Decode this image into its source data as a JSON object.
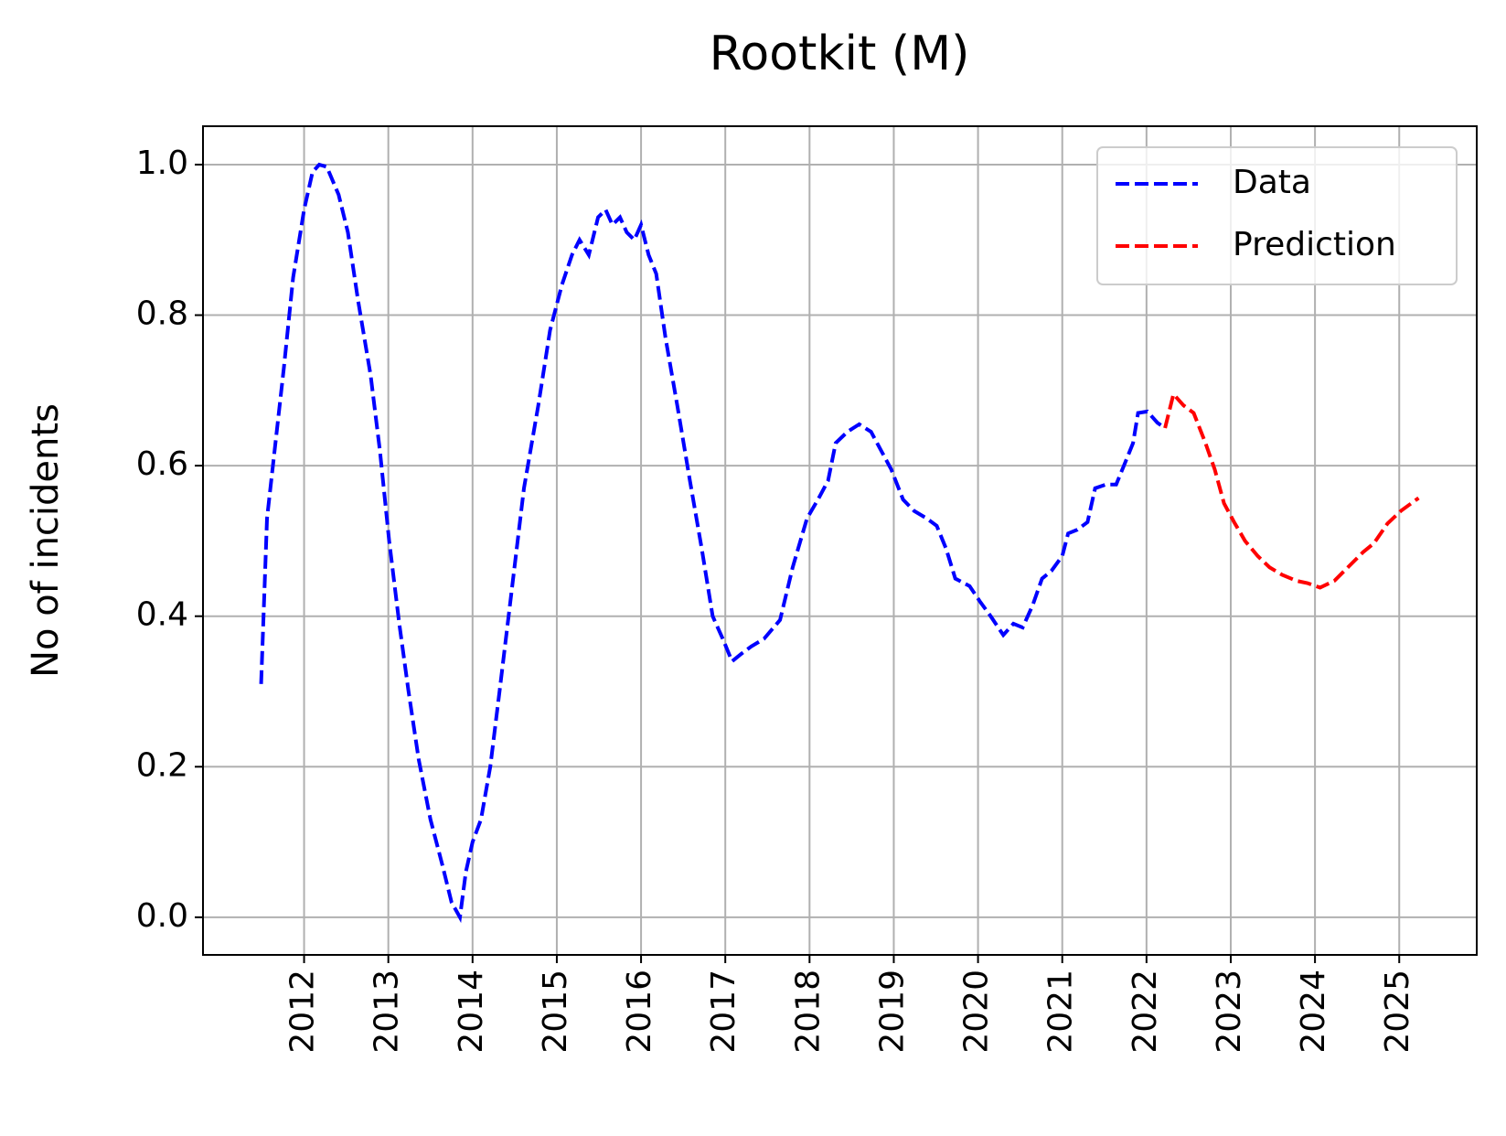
{
  "chart_data": {
    "type": "line",
    "title": "Rootkit (M)",
    "y_label": "No of incidents",
    "xlim": [
      2010.8,
      2025.92
    ],
    "xticks": [
      2012,
      2013,
      2014,
      2015,
      2016,
      2017,
      2018,
      2019,
      2020,
      2021,
      2022,
      2023,
      2024,
      2025
    ],
    "ylim": [
      -0.05,
      1.051
    ],
    "yticks": [
      {
        "value": 0,
        "label": "0.0"
      },
      0.2,
      0.4,
      0.6,
      0.8,
      {
        "value": 1,
        "label": "1.0"
      }
    ],
    "grid": true,
    "legend": "upper right",
    "series": [
      {
        "name": "Data",
        "color": "#0000ff",
        "x": [
          2011.49,
          2011.56,
          2011.65,
          2011.76,
          2011.87,
          2012.0,
          2012.1,
          2012.18,
          2012.27,
          2012.41,
          2012.52,
          2012.64,
          2012.79,
          2012.9,
          2013.01,
          2013.13,
          2013.24,
          2013.36,
          2013.5,
          2013.64,
          2013.75,
          2013.85,
          2013.92,
          2014.0,
          2014.1,
          2014.21,
          2014.32,
          2014.46,
          2014.61,
          2014.78,
          2014.92,
          2015.06,
          2015.18,
          2015.27,
          2015.38,
          2015.49,
          2015.58,
          2015.66,
          2015.75,
          2015.83,
          2015.92,
          2016.0,
          2016.09,
          2016.18,
          2016.29,
          2016.43,
          2016.58,
          2016.72,
          2016.85,
          2016.97,
          2017.08,
          2017.19,
          2017.31,
          2017.46,
          2017.65,
          2017.8,
          2017.97,
          2018.1,
          2018.22,
          2018.31,
          2018.45,
          2018.59,
          2018.73,
          2018.85,
          2018.97,
          2019.11,
          2019.24,
          2019.39,
          2019.51,
          2019.62,
          2019.73,
          2019.9,
          2020.02,
          2020.15,
          2020.3,
          2020.42,
          2020.53,
          2020.65,
          2020.76,
          2020.87,
          2021.0,
          2021.07,
          2021.18,
          2021.3,
          2021.39,
          2021.52,
          2021.64,
          2021.75,
          2021.84,
          2021.9,
          2022.01,
          2022.13,
          2022.22
        ],
        "values": [
          0.31,
          0.53,
          0.62,
          0.73,
          0.85,
          0.94,
          0.99,
          1.0,
          0.997,
          0.96,
          0.91,
          0.82,
          0.72,
          0.62,
          0.5,
          0.39,
          0.3,
          0.21,
          0.13,
          0.07,
          0.02,
          0.0,
          0.06,
          0.1,
          0.13,
          0.2,
          0.3,
          0.43,
          0.57,
          0.68,
          0.78,
          0.84,
          0.88,
          0.9,
          0.88,
          0.93,
          0.94,
          0.92,
          0.93,
          0.91,
          0.9,
          0.92,
          0.88,
          0.855,
          0.77,
          0.68,
          0.58,
          0.49,
          0.4,
          0.37,
          0.34,
          0.35,
          0.36,
          0.37,
          0.395,
          0.465,
          0.53,
          0.555,
          0.58,
          0.63,
          0.645,
          0.655,
          0.645,
          0.62,
          0.595,
          0.555,
          0.54,
          0.53,
          0.52,
          0.49,
          0.45,
          0.44,
          0.42,
          0.4,
          0.375,
          0.39,
          0.385,
          0.415,
          0.45,
          0.46,
          0.48,
          0.51,
          0.515,
          0.525,
          0.57,
          0.575,
          0.575,
          0.605,
          0.63,
          0.67,
          0.672,
          0.657,
          0.65
        ]
      },
      {
        "name": "Prediction",
        "color": "#ff0000",
        "x": [
          2022.22,
          2022.32,
          2022.44,
          2022.56,
          2022.7,
          2022.81,
          2022.92,
          2023.04,
          2023.17,
          2023.32,
          2023.46,
          2023.61,
          2023.78,
          2023.91,
          2024.06,
          2024.23,
          2024.4,
          2024.57,
          2024.7,
          2024.86,
          2025.02,
          2025.23
        ],
        "values": [
          0.65,
          0.695,
          0.68,
          0.67,
          0.63,
          0.595,
          0.55,
          0.525,
          0.5,
          0.48,
          0.465,
          0.455,
          0.447,
          0.444,
          0.438,
          0.447,
          0.466,
          0.485,
          0.497,
          0.523,
          0.54,
          0.557
        ]
      }
    ]
  }
}
